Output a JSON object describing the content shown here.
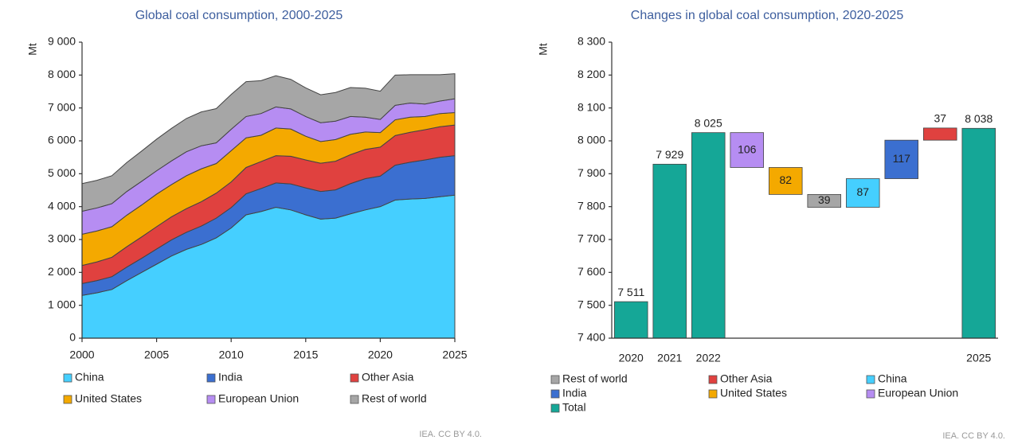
{
  "chart_data": [
    {
      "type": "area",
      "title": "Global coal consumption, 2000-2025",
      "ylabel": "Mt",
      "source": "IEA. CC BY 4.0.",
      "stacked": true,
      "x": [
        2000,
        2001,
        2002,
        2003,
        2004,
        2005,
        2006,
        2007,
        2008,
        2009,
        2010,
        2011,
        2012,
        2013,
        2014,
        2015,
        2016,
        2017,
        2018,
        2019,
        2020,
        2021,
        2022,
        2023,
        2024,
        2025
      ],
      "xlim": [
        2000,
        2025
      ],
      "xticks": [
        2000,
        2005,
        2010,
        2015,
        2020,
        2025
      ],
      "ylim": [
        0,
        9000
      ],
      "yticks": [
        0,
        {
          "value": 1000,
          "label": "1 000"
        },
        {
          "value": 2000,
          "label": "2 000"
        },
        {
          "value": 3000,
          "label": "3 000"
        },
        {
          "value": 4000,
          "label": "4 000"
        },
        {
          "value": 5000,
          "label": "5 000"
        },
        {
          "value": 6000,
          "label": "6 000"
        },
        {
          "value": 7000,
          "label": "7 000"
        },
        {
          "value": 8000,
          "label": "8 000"
        },
        {
          "value": 9000,
          "label": "9 000"
        }
      ],
      "series": [
        {
          "name": "China",
          "color": "#45cfff",
          "values": [
            1300,
            1380,
            1480,
            1750,
            2000,
            2250,
            2500,
            2700,
            2850,
            3050,
            3350,
            3750,
            3850,
            3980,
            3900,
            3750,
            3620,
            3650,
            3780,
            3900,
            4000,
            4200,
            4230,
            4250,
            4300,
            4350
          ]
        },
        {
          "name": "India",
          "color": "#3b6fd0",
          "values": [
            360,
            370,
            390,
            410,
            430,
            460,
            490,
            520,
            560,
            600,
            620,
            640,
            700,
            740,
            790,
            820,
            840,
            860,
            920,
            950,
            930,
            1060,
            1120,
            1170,
            1200,
            1200
          ]
        },
        {
          "name": "Other Asia",
          "color": "#e0413f",
          "values": [
            550,
            570,
            590,
            620,
            650,
            680,
            700,
            720,
            740,
            760,
            780,
            800,
            820,
            830,
            840,
            850,
            860,
            870,
            880,
            890,
            880,
            900,
            910,
            920,
            930,
            930
          ]
        },
        {
          "name": "United States",
          "color": "#f4a900",
          "values": [
            950,
            940,
            930,
            960,
            970,
            990,
            980,
            1000,
            1000,
            900,
            950,
            900,
            800,
            840,
            830,
            720,
            660,
            660,
            620,
            530,
            440,
            480,
            460,
            400,
            400,
            380
          ]
        },
        {
          "name": "European Union",
          "color": "#b68df2",
          "values": [
            700,
            700,
            700,
            720,
            720,
            710,
            720,
            730,
            700,
            630,
            650,
            650,
            660,
            640,
            610,
            600,
            570,
            560,
            540,
            450,
            400,
            440,
            430,
            380,
            380,
            420
          ]
        },
        {
          "name": "Rest of world",
          "color": "#a6a6a6",
          "values": [
            840,
            840,
            850,
            880,
            920,
            960,
            990,
            1010,
            1030,
            1040,
            1060,
            1060,
            1000,
            950,
            900,
            870,
            850,
            870,
            880,
            880,
            860,
            920,
            860,
            890,
            800,
            760
          ]
        }
      ]
    },
    {
      "type": "waterfall",
      "title": "Changes in global coal consumption, 2020-2025",
      "ylabel": "Mt",
      "source": "IEA. CC BY 4.0.",
      "categories": [
        "2020",
        "2021",
        "2022",
        null,
        null,
        null,
        null,
        null,
        null,
        "2025"
      ],
      "values": [
        7511,
        7929,
        8025,
        -106,
        -82,
        -39,
        87,
        117,
        37,
        8038
      ],
      "value_labels": [
        "7 511",
        "7 929",
        "8 025",
        "106",
        "82",
        "39",
        "87",
        "117",
        "37",
        "8 038"
      ],
      "measure": [
        "absolute",
        "absolute",
        "absolute",
        "relative",
        "relative",
        "relative",
        "relative",
        "relative",
        "relative",
        "absolute"
      ],
      "colors": [
        "#15a797",
        "#15a797",
        "#15a797",
        "#b68df2",
        "#f4a900",
        "#a6a6a6",
        "#45cfff",
        "#3b6fd0",
        "#e0413f",
        "#15a797"
      ],
      "ylim": [
        7400,
        8300
      ],
      "yticks": [
        {
          "value": 7400,
          "label": "7 400"
        },
        {
          "value": 7500,
          "label": "7 500"
        },
        {
          "value": 7600,
          "label": "7 600"
        },
        {
          "value": 7700,
          "label": "7 700"
        },
        {
          "value": 7800,
          "label": "7 800"
        },
        {
          "value": 7900,
          "label": "7 900"
        },
        {
          "value": 8000,
          "label": "8 000"
        },
        {
          "value": 8100,
          "label": "8 100"
        },
        {
          "value": 8200,
          "label": "8 200"
        },
        {
          "value": 8300,
          "label": "8 300"
        }
      ],
      "legend": [
        {
          "name": "Rest of world",
          "color": "#a6a6a6"
        },
        {
          "name": "Other Asia",
          "color": "#e0413f"
        },
        {
          "name": "China",
          "color": "#45cfff"
        },
        {
          "name": "India",
          "color": "#3b6fd0"
        },
        {
          "name": "United States",
          "color": "#f4a900"
        },
        {
          "name": "European Union",
          "color": "#b68df2"
        },
        {
          "name": "Total",
          "color": "#15a797"
        }
      ]
    }
  ]
}
